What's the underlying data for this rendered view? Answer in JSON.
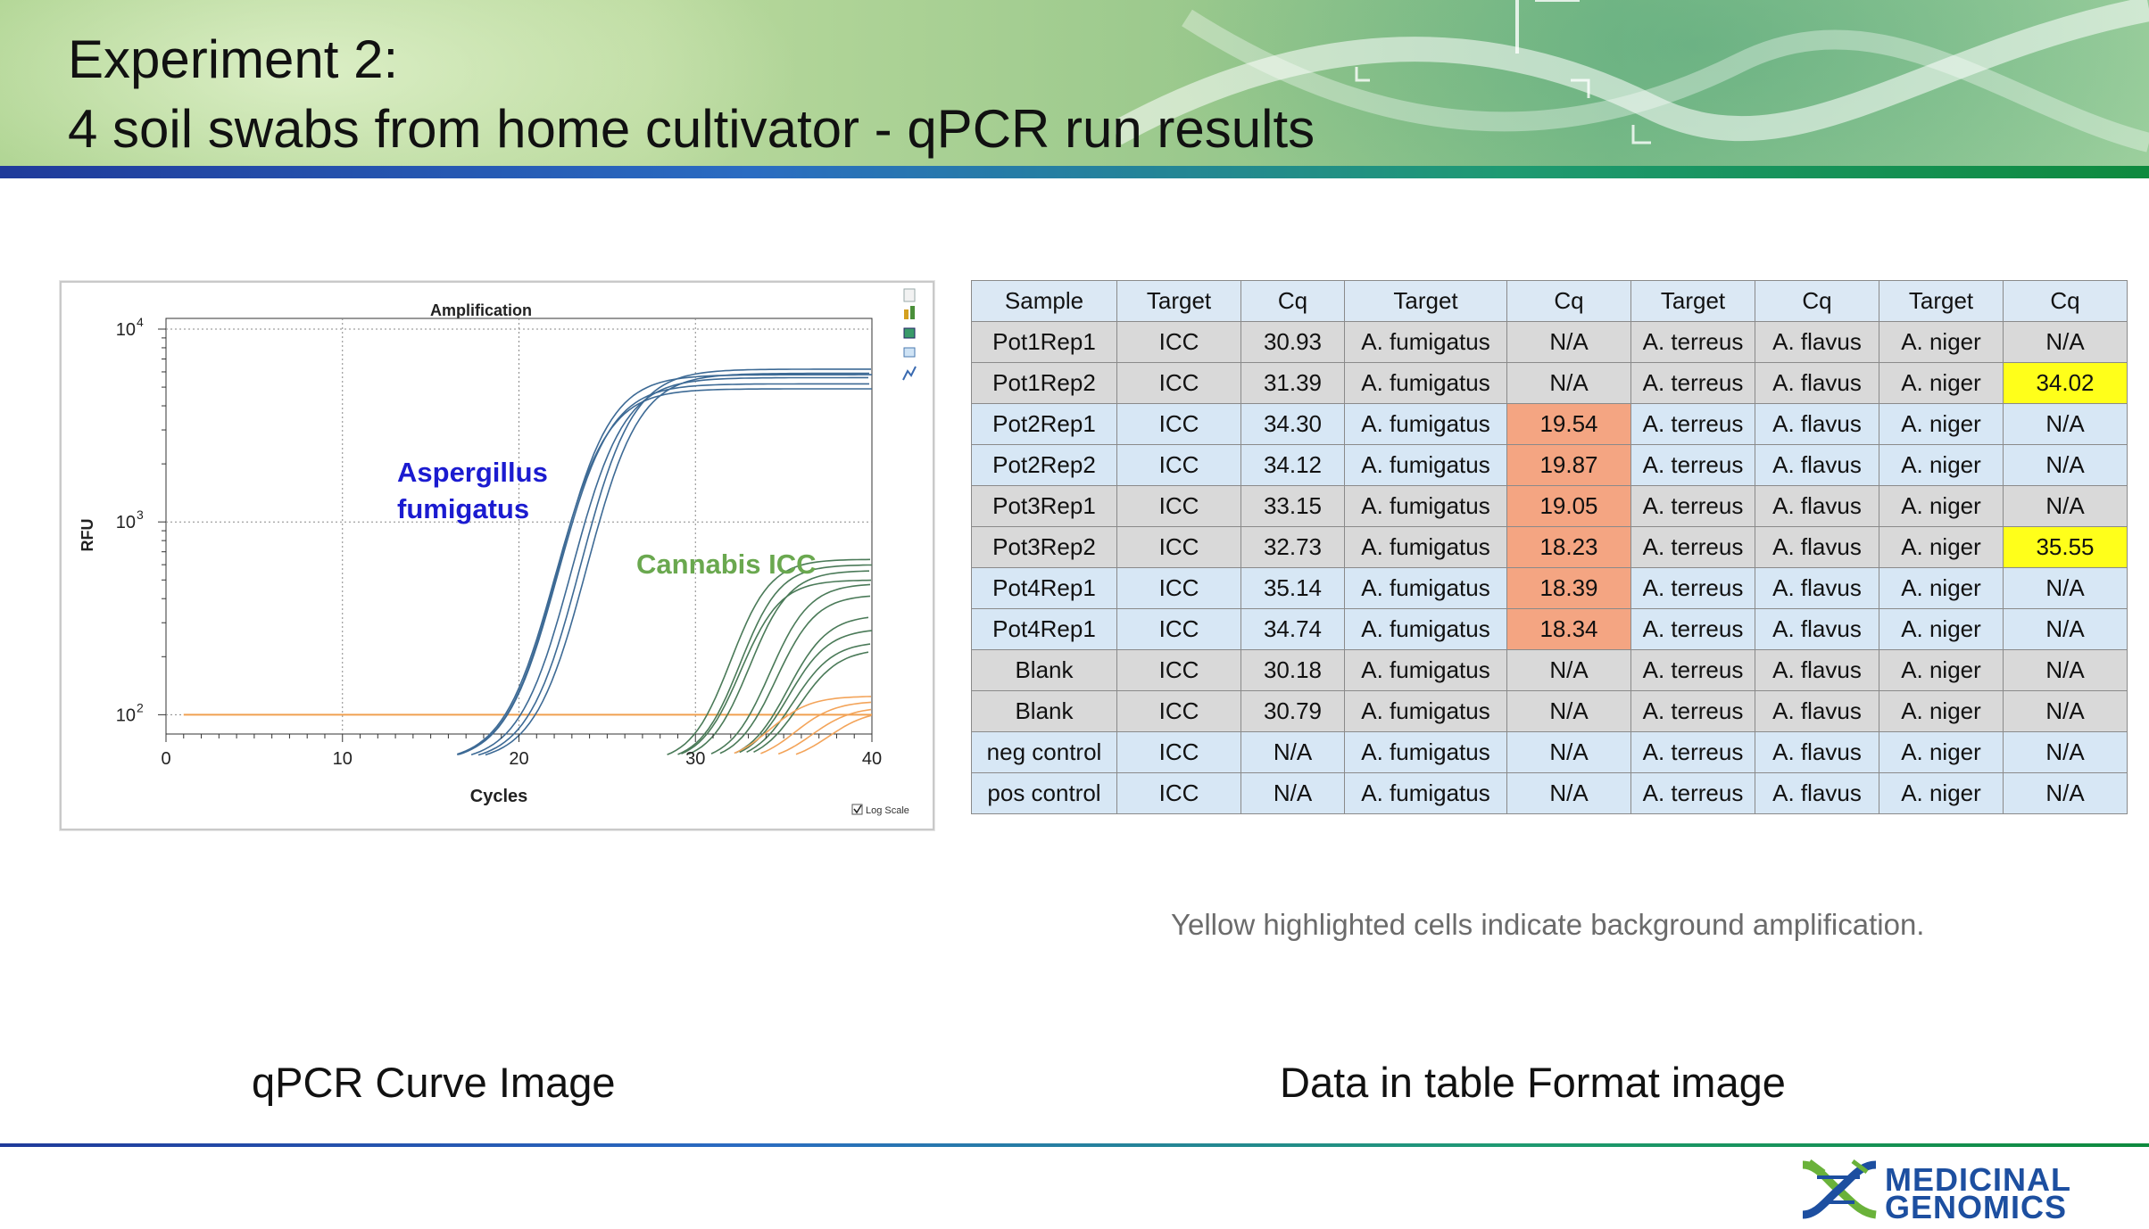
{
  "header": {
    "title_line1": "Experiment 2:",
    "title_line2": "4 soil swabs from home cultivator - qPCR run results"
  },
  "colors": {
    "aspergillus": "#1b1bd0",
    "cannabis": "#6aa84f",
    "threshold": "#f0a050",
    "orange_cell": "#f4a582",
    "yellow_cell": "#ffff1a"
  },
  "chart_data": {
    "type": "line",
    "title": "Amplification",
    "xlabel": "Cycles",
    "ylabel": "RFU",
    "x_ticks": [
      "0",
      "10",
      "20",
      "30",
      "40"
    ],
    "y_ticks": [
      "10",
      "10",
      "10"
    ],
    "y_ticks_exp": [
      "4",
      "3",
      "2"
    ],
    "xlim": [
      0,
      40
    ],
    "ylim": [
      100,
      10000
    ],
    "log_scale": true,
    "grid": true,
    "log_scale_label": "Log Scale",
    "annotation_aspergillus_1": "Aspergillus",
    "annotation_aspergillus_2": "fumigatus",
    "annotation_cannabis": "Cannabis ICC",
    "threshold_rfu": 100,
    "series_groups": [
      {
        "group": "aspergillus",
        "curves": [
          {
            "ct": 19.5,
            "plateau": 6200
          },
          {
            "ct": 19.9,
            "plateau": 5900
          },
          {
            "ct": 19.1,
            "plateau": 5600
          },
          {
            "ct": 18.3,
            "plateau": 5800
          },
          {
            "ct": 18.4,
            "plateau": 5200
          },
          {
            "ct": 18.3,
            "plateau": 4900
          }
        ]
      },
      {
        "group": "cannabis",
        "curves": [
          {
            "ct": 30.2,
            "plateau": 640
          },
          {
            "ct": 30.8,
            "plateau": 600
          },
          {
            "ct": 31.4,
            "plateau": 560
          },
          {
            "ct": 32.7,
            "plateau": 480
          },
          {
            "ct": 33.2,
            "plateau": 420
          },
          {
            "ct": 34.1,
            "plateau": 330
          },
          {
            "ct": 34.3,
            "plateau": 280
          },
          {
            "ct": 34.7,
            "plateau": 240
          },
          {
            "ct": 35.1,
            "plateau": 220
          },
          {
            "ct": 31.0,
            "plateau": 500
          }
        ]
      },
      {
        "group": "background",
        "curves": [
          {
            "ct": 34.0,
            "plateau": 125
          },
          {
            "ct": 35.5,
            "plateau": 118
          },
          {
            "ct": 36.5,
            "plateau": 110
          },
          {
            "ct": 37.5,
            "plateau": 106
          }
        ]
      }
    ]
  },
  "table": {
    "headers": [
      "Sample",
      "Target",
      "Cq",
      "Target",
      "Cq",
      "Target",
      "Cq",
      "Target",
      "Cq"
    ],
    "rows": [
      {
        "style": "gray",
        "cells": [
          "Pot1Rep1",
          "ICC",
          "30.93",
          "A. fumigatus",
          "N/A",
          "A. terreus",
          "A. flavus",
          "A. niger",
          "N/A"
        ],
        "hl": {}
      },
      {
        "style": "gray",
        "cells": [
          "Pot1Rep2",
          "ICC",
          "31.39",
          "A. fumigatus",
          "N/A",
          "A. terreus",
          "A. flavus",
          "A. niger",
          "34.02"
        ],
        "hl": {
          "8": "yellow"
        }
      },
      {
        "style": "blue",
        "cells": [
          "Pot2Rep1",
          "ICC",
          "34.30",
          "A. fumigatus",
          "19.54",
          "A. terreus",
          "A. flavus",
          "A. niger",
          "N/A"
        ],
        "hl": {
          "4": "orange"
        }
      },
      {
        "style": "blue",
        "cells": [
          "Pot2Rep2",
          "ICC",
          "34.12",
          "A. fumigatus",
          "19.87",
          "A. terreus",
          "A. flavus",
          "A. niger",
          "N/A"
        ],
        "hl": {
          "4": "orange"
        }
      },
      {
        "style": "gray",
        "cells": [
          "Pot3Rep1",
          "ICC",
          "33.15",
          "A. fumigatus",
          "19.05",
          "A. terreus",
          "A. flavus",
          "A. niger",
          "N/A"
        ],
        "hl": {
          "4": "orange"
        }
      },
      {
        "style": "gray",
        "cells": [
          "Pot3Rep2",
          "ICC",
          "32.73",
          "A. fumigatus",
          "18.23",
          "A. terreus",
          "A. flavus",
          "A. niger",
          "35.55"
        ],
        "hl": {
          "4": "orange",
          "8": "yellow"
        }
      },
      {
        "style": "blue",
        "cells": [
          "Pot4Rep1",
          "ICC",
          "35.14",
          "A. fumigatus",
          "18.39",
          "A. terreus",
          "A. flavus",
          "A. niger",
          "N/A"
        ],
        "hl": {
          "4": "orange"
        }
      },
      {
        "style": "blue",
        "cells": [
          "Pot4Rep1",
          "ICC",
          "34.74",
          "A. fumigatus",
          "18.34",
          "A. terreus",
          "A. flavus",
          "A. niger",
          "N/A"
        ],
        "hl": {
          "4": "orange"
        }
      },
      {
        "style": "gray",
        "cells": [
          "Blank",
          "ICC",
          "30.18",
          "A. fumigatus",
          "N/A",
          "A. terreus",
          "A. flavus",
          "A. niger",
          "N/A"
        ],
        "hl": {}
      },
      {
        "style": "gray",
        "cells": [
          "Blank",
          "ICC",
          "30.79",
          "A. fumigatus",
          "N/A",
          "A. terreus",
          "A. flavus",
          "A. niger",
          "N/A"
        ],
        "hl": {}
      },
      {
        "style": "blue",
        "cells": [
          "neg control",
          "ICC",
          "N/A",
          "A. fumigatus",
          "N/A",
          "A. terreus",
          "A. flavus",
          "A. niger",
          "N/A"
        ],
        "hl": {}
      },
      {
        "style": "blue",
        "cells": [
          "pos control",
          "ICC",
          "N/A",
          "A. fumigatus",
          "N/A",
          "A. terreus",
          "A. flavus",
          "A. niger",
          "N/A"
        ],
        "hl": {}
      }
    ]
  },
  "note": "Yellow highlighted cells indicate background amplification.",
  "captions": {
    "left": "qPCR Curve Image",
    "right": "Data in table Format image"
  },
  "logo": {
    "line1": "MEDICINAL",
    "line2": "GENOMICS"
  }
}
